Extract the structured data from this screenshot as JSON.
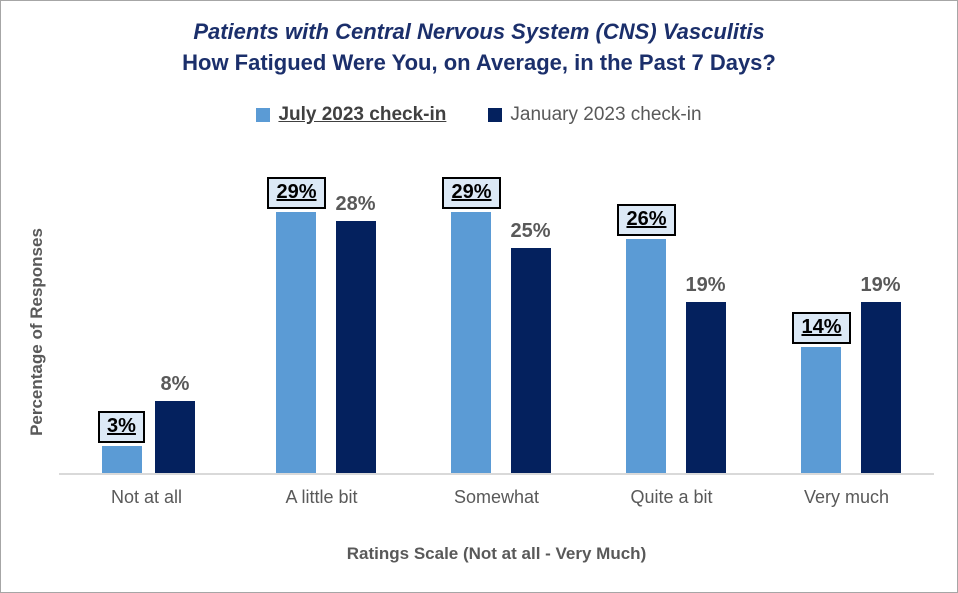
{
  "chart": {
    "title_line1": "Patients with Central Nervous System (CNS) Vasculitis",
    "title_line2": "How Fatigued Were You, on Average, in the Past 7 Days?",
    "ylabel": "Percentage of Responses",
    "xlabel": "Ratings Scale (Not at all - Very Much)"
  },
  "chart_data": {
    "type": "bar",
    "title": "Patients with Central Nervous System (CNS) Vasculitis — How Fatigued Were You, on Average, in the Past 7 Days?",
    "categories": [
      "Not at all",
      "A little bit",
      "Somewhat",
      "Quite a bit",
      "Very much"
    ],
    "series": [
      {
        "name": "July 2023 check-in",
        "color": "#5b9bd5",
        "values": [
          3,
          29,
          29,
          26,
          14
        ],
        "data_labels": [
          "3%",
          "29%",
          "29%",
          "26%",
          "14%"
        ],
        "label_style": "boxed-underlined"
      },
      {
        "name": "January 2023 check-in",
        "color": "#04215e",
        "values": [
          8,
          28,
          25,
          19,
          19
        ],
        "data_labels": [
          "8%",
          "28%",
          "25%",
          "19%",
          "19%"
        ],
        "label_style": "plain"
      }
    ],
    "xlabel": "Ratings Scale (Not at all - Very Much)",
    "ylabel": "Percentage of Responses",
    "ylim": [
      0,
      32
    ],
    "y_ticks_visible": false,
    "grid": false,
    "legend_position": "top"
  },
  "colors": {
    "title_navy": "#1b2f6b",
    "july_blue": "#5b9bd5",
    "january_navy": "#04215e",
    "label_box_fill": "#dce9f6",
    "label_box_border": "#000000",
    "axis_text_gray": "#595959",
    "axis_line_gray": "#d9d9d9",
    "frame_border": "#a6a6a6"
  }
}
